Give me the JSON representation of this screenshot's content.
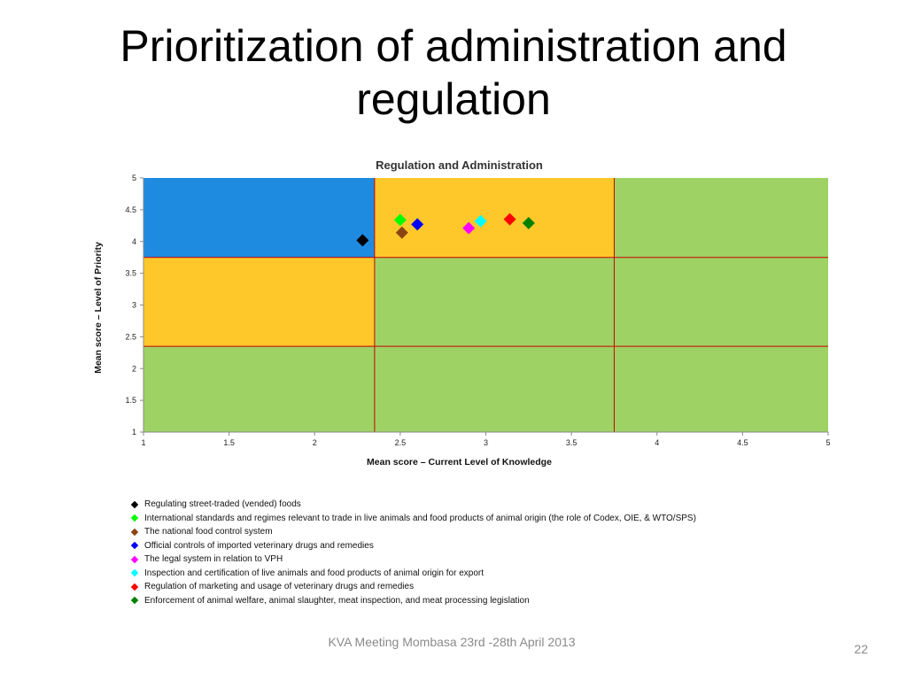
{
  "slide": {
    "title": "Prioritization of administration and regulation",
    "footer": "KVA Meeting Mombasa 23rd -28th April 2013",
    "page_number": "22"
  },
  "colors": {
    "quadrant_blue": "#1F8BE0",
    "quadrant_orange": "#FEC82A",
    "quadrant_green": "#9ED264",
    "divider_line": "#CC0000"
  },
  "chart_data": {
    "type": "scatter",
    "title": "Regulation and Administration",
    "xlabel": "Mean score – Current Level of Knowledge",
    "ylabel": "Mean score – Level of Priority",
    "xlim": [
      1,
      5
    ],
    "ylim": [
      1,
      5
    ],
    "x_ticks": [
      "1",
      "1.5",
      "2",
      "2.5",
      "3",
      "3.5",
      "4",
      "4.5",
      "5"
    ],
    "y_ticks": [
      "1",
      "1.5",
      "2",
      "2.5",
      "3",
      "3.5",
      "4",
      "4.5",
      "5"
    ],
    "divider_x": [
      2.35,
      3.75
    ],
    "divider_y": [
      2.35,
      3.75
    ],
    "grid": false,
    "legend_position": "below",
    "marker": "diamond",
    "series": [
      {
        "name": "Regulating street-traded (vended) foods",
        "color": "#000000",
        "x": 2.28,
        "y": 4.02
      },
      {
        "name": "International standards and regimes relevant to trade in live animals and food products of animal origin (the role of Codex, OIE, & WTO/SPS)",
        "color": "#00FF00",
        "x": 2.5,
        "y": 4.34
      },
      {
        "name": "The national food control system",
        "color": "#8B4513",
        "x": 2.51,
        "y": 4.14
      },
      {
        "name": "Official controls of imported veterinary drugs and remedies",
        "color": "#0000FF",
        "x": 2.6,
        "y": 4.27
      },
      {
        "name": "The legal system in relation to VPH",
        "color": "#FF00FF",
        "x": 2.9,
        "y": 4.21
      },
      {
        "name": "Inspection and certification of live animals and food products of animal origin for export",
        "color": "#00FFFF",
        "x": 2.97,
        "y": 4.32
      },
      {
        "name": "Regulation of marketing and usage of veterinary drugs and remedies",
        "color": "#FF0000",
        "x": 3.14,
        "y": 4.35
      },
      {
        "name": "Enforcement of animal welfare, animal slaughter, meat inspection, and meat processing legislation",
        "color": "#008000",
        "x": 3.25,
        "y": 4.29
      }
    ]
  }
}
